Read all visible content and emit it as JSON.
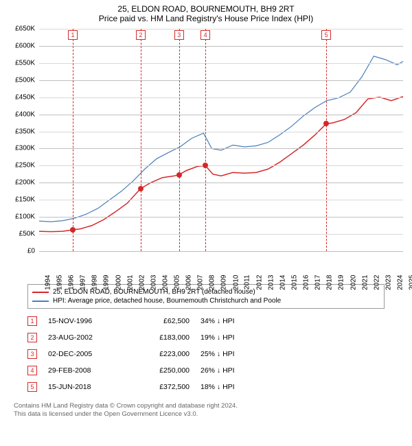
{
  "title": "25, ELDON ROAD, BOURNEMOUTH, BH9 2RT",
  "subtitle": "Price paid vs. HM Land Registry's House Price Index (HPI)",
  "chart": {
    "type": "line",
    "x_min": 1994,
    "x_max": 2025,
    "y_min": 0,
    "y_max": 650000,
    "y_tick_step": 50000,
    "y_tick_format": "gbp_k",
    "grid_color": "#d9d9d9",
    "grid_bold_color": "#bfbfbf",
    "axis_color": "#666666",
    "background_color": "#ffffff",
    "x_ticks": [
      1994,
      1995,
      1996,
      1997,
      1998,
      1999,
      2000,
      2001,
      2002,
      2003,
      2004,
      2005,
      2006,
      2007,
      2008,
      2009,
      2010,
      2011,
      2012,
      2013,
      2014,
      2015,
      2016,
      2017,
      2018,
      2019,
      2020,
      2021,
      2022,
      2023,
      2024,
      2025
    ],
    "series": [
      {
        "name": "25, ELDON ROAD, BOURNEMOUTH, BH9 2RT (detached house)",
        "color": "#d62728",
        "line_width": 1.5,
        "data": [
          [
            1994.0,
            58000
          ],
          [
            1995.0,
            57000
          ],
          [
            1996.0,
            58000
          ],
          [
            1996.87,
            62500
          ],
          [
            1997.5,
            65000
          ],
          [
            1998.5,
            75000
          ],
          [
            1999.5,
            92000
          ],
          [
            2000.5,
            115000
          ],
          [
            2001.5,
            140000
          ],
          [
            2002.3,
            170000
          ],
          [
            2002.65,
            183000
          ],
          [
            2003.5,
            200000
          ],
          [
            2004.5,
            215000
          ],
          [
            2005.5,
            220000
          ],
          [
            2005.92,
            223000
          ],
          [
            2006.5,
            235000
          ],
          [
            2007.5,
            248000
          ],
          [
            2008.16,
            250000
          ],
          [
            2008.8,
            225000
          ],
          [
            2009.5,
            220000
          ],
          [
            2010.5,
            230000
          ],
          [
            2011.5,
            228000
          ],
          [
            2012.5,
            230000
          ],
          [
            2013.5,
            240000
          ],
          [
            2014.5,
            260000
          ],
          [
            2015.5,
            285000
          ],
          [
            2016.5,
            310000
          ],
          [
            2017.5,
            340000
          ],
          [
            2018.46,
            372500
          ],
          [
            2019.0,
            375000
          ],
          [
            2020.0,
            385000
          ],
          [
            2021.0,
            405000
          ],
          [
            2022.0,
            445000
          ],
          [
            2023.0,
            450000
          ],
          [
            2024.0,
            440000
          ],
          [
            2025.0,
            452000
          ]
        ]
      },
      {
        "name": "HPI: Average price, detached house, Bournemouth Christchurch and Poole",
        "color": "#4a7ebb",
        "line_width": 1.2,
        "data": [
          [
            1994.0,
            88000
          ],
          [
            1995.0,
            86000
          ],
          [
            1996.0,
            89000
          ],
          [
            1997.0,
            96000
          ],
          [
            1998.0,
            108000
          ],
          [
            1999.0,
            125000
          ],
          [
            2000.0,
            150000
          ],
          [
            2001.0,
            175000
          ],
          [
            2002.0,
            205000
          ],
          [
            2003.0,
            240000
          ],
          [
            2004.0,
            270000
          ],
          [
            2005.0,
            288000
          ],
          [
            2006.0,
            305000
          ],
          [
            2007.0,
            330000
          ],
          [
            2008.0,
            345000
          ],
          [
            2008.7,
            300000
          ],
          [
            2009.5,
            295000
          ],
          [
            2010.5,
            310000
          ],
          [
            2011.5,
            305000
          ],
          [
            2012.5,
            308000
          ],
          [
            2013.5,
            318000
          ],
          [
            2014.5,
            340000
          ],
          [
            2015.5,
            365000
          ],
          [
            2016.5,
            395000
          ],
          [
            2017.5,
            420000
          ],
          [
            2018.5,
            440000
          ],
          [
            2019.5,
            448000
          ],
          [
            2020.5,
            465000
          ],
          [
            2021.5,
            510000
          ],
          [
            2022.5,
            570000
          ],
          [
            2023.5,
            560000
          ],
          [
            2024.5,
            545000
          ],
          [
            2025.0,
            555000
          ]
        ]
      }
    ],
    "events": [
      {
        "num": "1",
        "x": 1996.87,
        "price": 62500,
        "date": "15-NOV-1996",
        "price_label": "£62,500",
        "diff": "34% ↓ HPI"
      },
      {
        "num": "2",
        "x": 2002.65,
        "price": 183000,
        "date": "23-AUG-2002",
        "price_label": "£183,000",
        "diff": "19% ↓ HPI"
      },
      {
        "num": "3",
        "x": 2005.92,
        "price": 223000,
        "date": "02-DEC-2005",
        "price_label": "£223,000",
        "diff": "25% ↓ HPI"
      },
      {
        "num": "4",
        "x": 2008.16,
        "price": 250000,
        "date": "29-FEB-2008",
        "price_label": "£250,000",
        "diff": "26% ↓ HPI"
      },
      {
        "num": "5",
        "x": 2018.46,
        "price": 372500,
        "date": "15-JUN-2018",
        "price_label": "£372,500",
        "diff": "18% ↓ HPI"
      }
    ],
    "event_vline_color": "#d62728",
    "event_box_border": "#d62728",
    "point_fill": "#d62728"
  },
  "legend": {
    "series0": "25, ELDON ROAD, BOURNEMOUTH, BH9 2RT (detached house)",
    "series1": "HPI: Average price, detached house, Bournemouth Christchurch and Poole",
    "color0": "#d62728",
    "color1": "#4a7ebb"
  },
  "footer_line1": "Contains HM Land Registry data © Crown copyright and database right 2024.",
  "footer_line2": "This data is licensed under the Open Government Licence v3.0."
}
